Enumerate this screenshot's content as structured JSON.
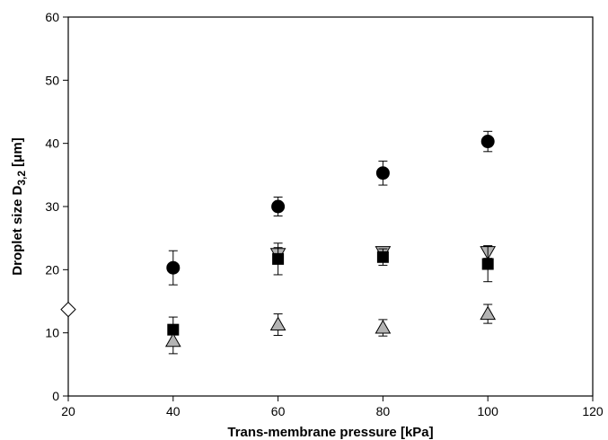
{
  "chart_data": {
    "type": "scatter",
    "xlabel": "Trans-membrane pressure [kPa]",
    "ylabel_parts": {
      "prefix": "Droplet size D",
      "subscript": "3,2",
      "suffix": " [μm]"
    },
    "xlim": [
      20,
      120
    ],
    "ylim": [
      0,
      60
    ],
    "x_ticks": [
      20,
      40,
      60,
      80,
      100,
      120
    ],
    "y_ticks": [
      0,
      10,
      20,
      30,
      40,
      50,
      60
    ],
    "grid": false,
    "series": [
      {
        "marker": "circle",
        "fill": "#000000",
        "x": [
          40,
          60,
          80,
          100
        ],
        "y": [
          20.3,
          30.0,
          35.3,
          40.3
        ],
        "err": [
          2.7,
          1.5,
          1.9,
          1.6
        ]
      },
      {
        "marker": "triangle-down",
        "fill": "#b3b3b3",
        "x": [
          60,
          80,
          100
        ],
        "y": [
          22.5,
          22.8,
          22.8
        ],
        "err": [
          1.0,
          0.8,
          1.0
        ]
      },
      {
        "marker": "square",
        "fill": "#000000",
        "x": [
          40,
          60,
          80,
          100
        ],
        "y": [
          10.5,
          21.7,
          22.0,
          20.9
        ],
        "err": [
          2.0,
          2.5,
          1.3,
          2.8
        ]
      },
      {
        "marker": "triangle-up",
        "fill": "#b3b3b3",
        "x": [
          40,
          60,
          80,
          100
        ],
        "y": [
          8.7,
          11.3,
          10.8,
          13.0
        ],
        "err": [
          2.0,
          1.7,
          1.3,
          1.5
        ]
      },
      {
        "marker": "diamond",
        "fill": "#ffffff",
        "x": [
          20
        ],
        "y": [
          13.7
        ],
        "err": [
          0
        ]
      }
    ]
  }
}
